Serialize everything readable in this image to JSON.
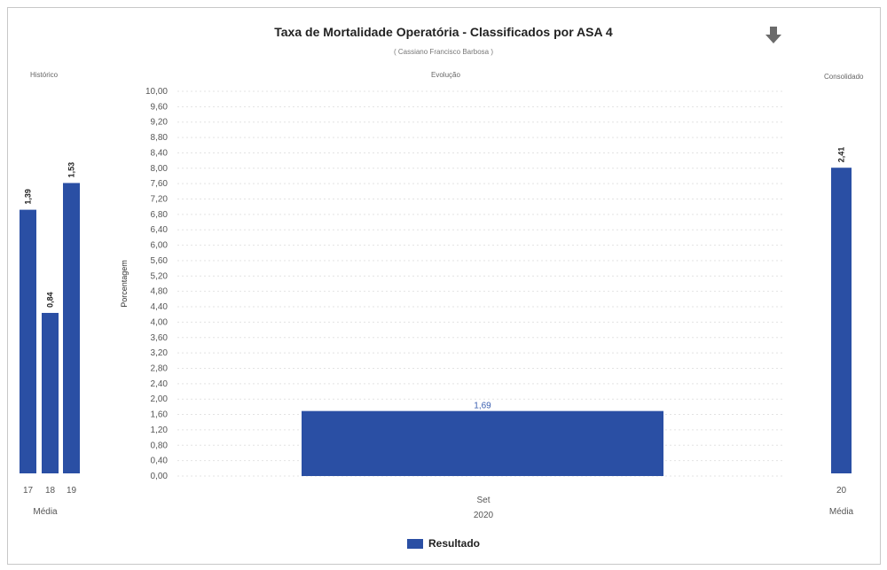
{
  "colors": {
    "bar": "#2a4fa4",
    "grid": "#e3e3e3",
    "axis_text": "#555555"
  },
  "header": {
    "title": "Taxa de Mortalidade Operatória - Classificados por ASA 4",
    "subtitle": "( Cassiano Francisco Barbosa )",
    "download_icon": "download-arrow-icon"
  },
  "panels": {
    "historico": "Histórico",
    "evolucao": "Evolução",
    "consolidado": "Consolidado"
  },
  "chart_data": [
    {
      "type": "bar",
      "panel": "Histórico",
      "categories": [
        "17",
        "18",
        "19"
      ],
      "values": [
        1.39,
        0.84,
        1.53
      ],
      "value_labels": [
        "1,39",
        "0,84",
        "1,53"
      ],
      "xlabel": "Média",
      "bar_heights_relative": [
        6.9,
        4.2,
        7.6
      ]
    },
    {
      "type": "bar",
      "panel": "Evolução",
      "categories": [
        "Set"
      ],
      "category_group": "2020",
      "series": [
        {
          "name": "Resultado",
          "values": [
            1.69
          ]
        }
      ],
      "value_labels": [
        "1,69"
      ],
      "ylabel": "Porcentagem",
      "ylim": [
        0,
        10
      ],
      "yticks": [
        "0,00",
        "0,40",
        "0,80",
        "1,20",
        "1,60",
        "2,00",
        "2,40",
        "2,80",
        "3,20",
        "3,60",
        "4,00",
        "4,40",
        "4,80",
        "5,20",
        "5,60",
        "6,00",
        "6,40",
        "6,80",
        "7,20",
        "7,60",
        "8,00",
        "8,40",
        "8,80",
        "9,20",
        "9,60",
        "10,00"
      ],
      "grid": true,
      "legend": "bottom-center"
    },
    {
      "type": "bar",
      "panel": "Consolidado",
      "categories": [
        "20"
      ],
      "values": [
        2.41
      ],
      "value_labels": [
        "2,41"
      ],
      "xlabel": "Média",
      "bar_heights_relative": [
        8.0
      ]
    }
  ],
  "legend": {
    "label": "Resultado"
  }
}
